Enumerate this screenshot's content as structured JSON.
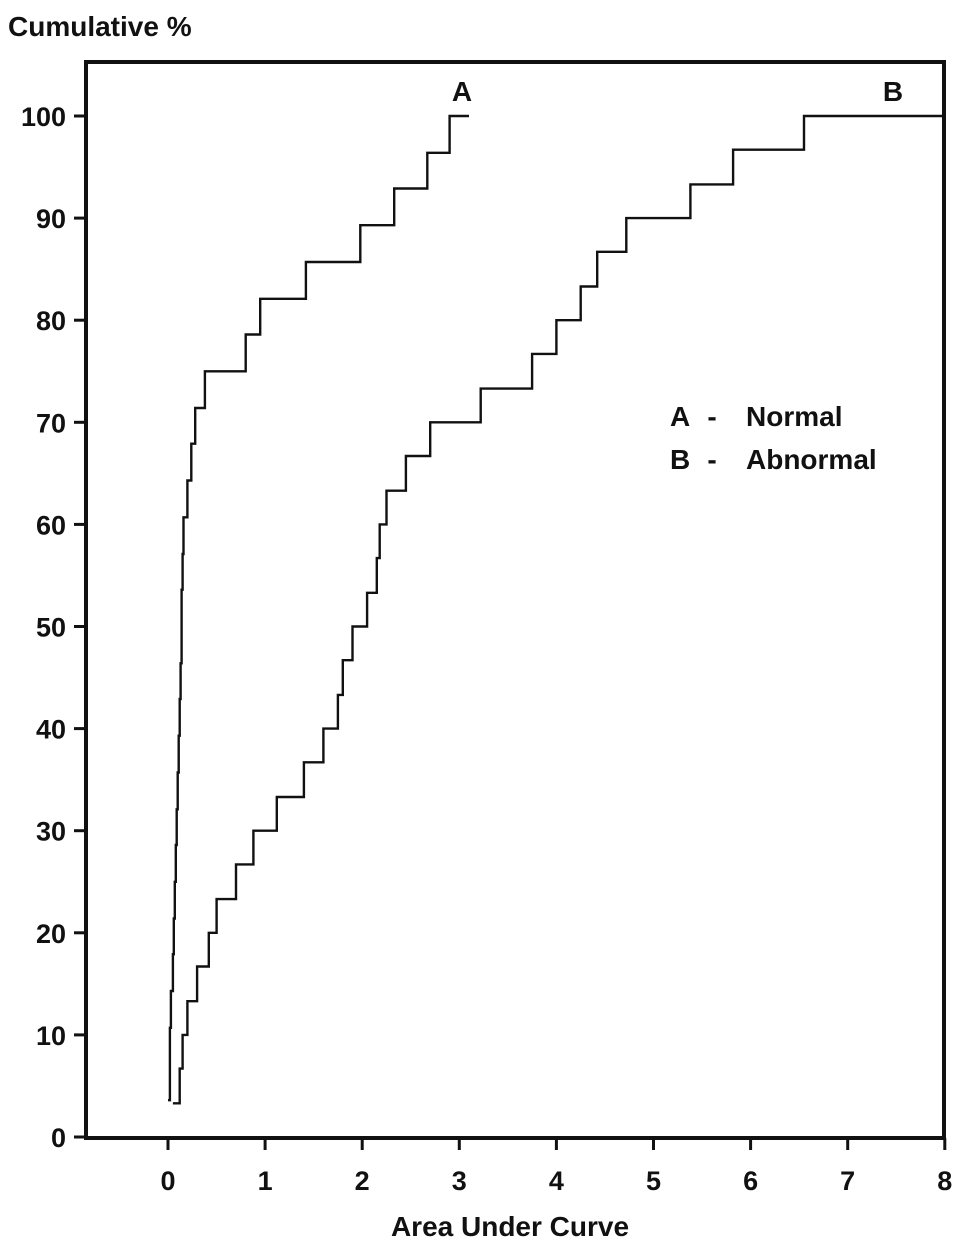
{
  "chart_data": {
    "type": "line",
    "title": "",
    "ylabel": "Cumulative %",
    "xlabel": "Area Under Curve",
    "xlim": [
      -0.8,
      8
    ],
    "ylim": [
      0,
      100
    ],
    "x_ticks": [
      0,
      1,
      2,
      3,
      4,
      5,
      6,
      7,
      8
    ],
    "y_ticks": [
      0,
      10,
      20,
      30,
      40,
      50,
      60,
      70,
      80,
      90,
      100
    ],
    "grid": false,
    "step": true,
    "legend": {
      "position": "right",
      "entries": [
        {
          "key": "A",
          "dash": "-",
          "label": "Normal"
        },
        {
          "key": "B",
          "dash": "-",
          "label": "Abnormal"
        }
      ]
    },
    "series": [
      {
        "name": "A",
        "color": "#111111",
        "x": [
          0.0,
          0.02,
          0.03,
          0.05,
          0.06,
          0.07,
          0.08,
          0.09,
          0.1,
          0.11,
          0.12,
          0.13,
          0.14,
          0.15,
          0.16,
          0.18,
          0.2,
          0.24,
          0.28,
          0.33,
          0.38,
          0.53,
          0.8,
          0.95,
          1.42,
          1.98,
          2.33,
          2.67,
          2.9,
          3.1
        ],
        "y": [
          3.6,
          10.7,
          14.3,
          17.9,
          21.4,
          25.0,
          28.6,
          32.1,
          35.7,
          39.3,
          42.9,
          46.4,
          53.6,
          57.1,
          60.7,
          60.7,
          64.3,
          67.9,
          71.4,
          71.4,
          75.0,
          75.0,
          78.6,
          82.1,
          85.7,
          89.3,
          92.9,
          96.4,
          100.0,
          100.0
        ]
      },
      {
        "name": "B",
        "color": "#111111",
        "x": [
          0.05,
          0.1,
          0.12,
          0.15,
          0.2,
          0.3,
          0.42,
          0.5,
          0.7,
          0.88,
          1.12,
          1.4,
          1.6,
          1.75,
          1.8,
          1.9,
          2.05,
          2.15,
          2.18,
          2.25,
          2.45,
          2.7,
          3.22,
          3.75,
          4.0,
          4.25,
          4.42,
          4.72,
          5.38,
          5.82,
          6.55,
          8.0
        ],
        "y": [
          3.3,
          3.3,
          6.7,
          10.0,
          13.3,
          16.7,
          20.0,
          23.3,
          26.7,
          30.0,
          33.3,
          36.7,
          40.0,
          43.3,
          46.7,
          50.0,
          53.3,
          56.7,
          60.0,
          63.3,
          66.7,
          70.0,
          73.3,
          76.7,
          80.0,
          83.3,
          86.7,
          90.0,
          93.3,
          96.7,
          100.0,
          100.0
        ]
      }
    ]
  }
}
